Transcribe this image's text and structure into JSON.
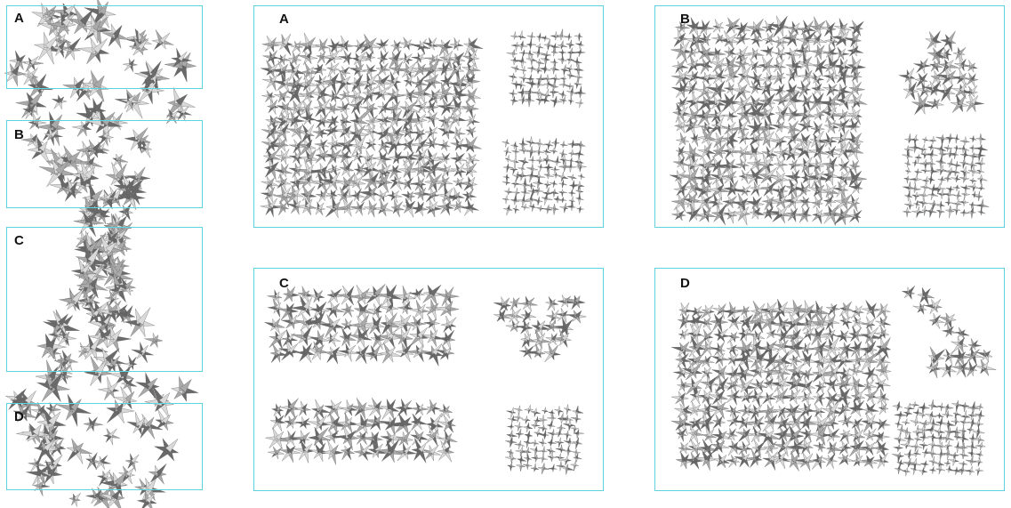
{
  "colors": {
    "frame": "#5fd3dd",
    "structure_light": "#d9d9d9",
    "structure_mid": "#a9a9a9",
    "structure_dark": "#6a6a6a"
  },
  "overview": {
    "labels": {
      "a": "A",
      "b": "B",
      "c": "C",
      "d": "D"
    }
  },
  "panels": {
    "a": {
      "label": "A"
    },
    "b": {
      "label": "B"
    },
    "c": {
      "label": "C"
    },
    "d": {
      "label": "D"
    }
  }
}
